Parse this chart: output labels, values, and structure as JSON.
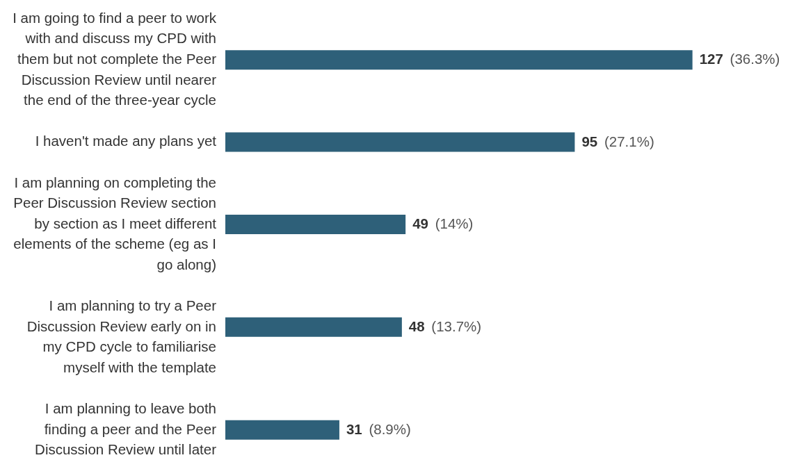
{
  "chart_data": {
    "type": "bar",
    "orientation": "horizontal",
    "categories": [
      "I am going to find a peer to work with and discuss my CPD with them but not complete the Peer Discussion Review until nearer the end of the three-year cycle",
      "I haven't made any plans yet",
      "I am planning on completing the Peer Discussion Review section by section as I meet different elements of the scheme (eg as I go along)",
      "I am planning to try a Peer Discussion Review early on in my CPD cycle to familiarise myself with the template",
      "I am planning to leave both finding a peer and the Peer Discussion Review until later"
    ],
    "values": [
      127,
      95,
      49,
      48,
      31
    ],
    "value_labels": [
      "127 (36.3%)",
      "95 (27.1%)",
      "49 (14%)",
      "48 (13.7%)",
      "31 (8.9%)"
    ],
    "color": "#2e6079",
    "grid": false,
    "legend": false
  }
}
